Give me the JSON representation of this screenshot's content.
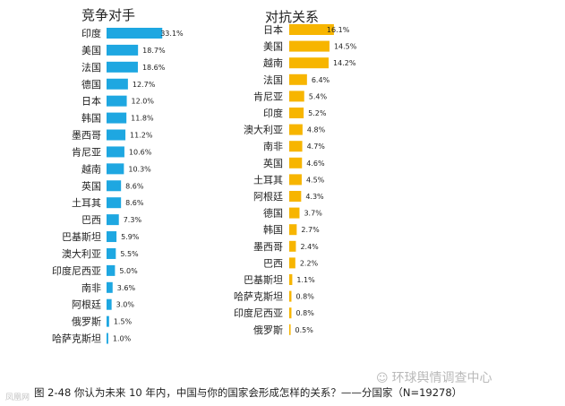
{
  "chart_data": [
    {
      "type": "bar",
      "orientation": "horizontal",
      "title": "竞争对手",
      "unit": "%",
      "color": "#1ea7e1",
      "categories": [
        "印度",
        "美国",
        "法国",
        "德国",
        "日本",
        "韩国",
        "墨西哥",
        "肯尼亚",
        "越南",
        "英国",
        "土耳其",
        "巴西",
        "巴基斯坦",
        "澳大利亚",
        "印度尼西亚",
        "南非",
        "阿根廷",
        "俄罗斯",
        "哈萨克斯坦"
      ],
      "values": [
        33.1,
        18.7,
        18.6,
        12.7,
        12.0,
        11.8,
        11.2,
        10.6,
        10.3,
        8.6,
        8.6,
        7.3,
        5.9,
        5.5,
        5.0,
        3.6,
        3.0,
        1.5,
        1.0
      ],
      "value_labels": [
        "33.1%",
        "18.7%",
        "18.6%",
        "12.7%",
        "12.0%",
        "11.8%",
        "11.2%",
        "10.6%",
        "10.3%",
        "8.6%",
        "8.6%",
        "7.3%",
        "5.9%",
        "5.5%",
        "5.0%",
        "3.6%",
        "3.0%",
        "1.5%",
        "1.0%"
      ]
    },
    {
      "type": "bar",
      "orientation": "horizontal",
      "title": "对抗关系",
      "unit": "%",
      "color": "#f7b500",
      "categories": [
        "日本",
        "美国",
        "越南",
        "法国",
        "肯尼亚",
        "印度",
        "澳大利亚",
        "南非",
        "英国",
        "土耳其",
        "阿根廷",
        "德国",
        "韩国",
        "墨西哥",
        "巴西",
        "巴基斯坦",
        "哈萨克斯坦",
        "印度尼西亚",
        "俄罗斯"
      ],
      "values": [
        16.1,
        14.5,
        14.2,
        6.4,
        5.4,
        5.2,
        4.8,
        4.7,
        4.6,
        4.5,
        4.3,
        3.7,
        2.7,
        2.4,
        2.2,
        1.1,
        0.8,
        0.8,
        0.5
      ],
      "value_labels": [
        "16.1%",
        "14.5%",
        "14.2%",
        "6.4%",
        "5.4%",
        "5.2%",
        "4.8%",
        "4.7%",
        "4.6%",
        "4.5%",
        "4.3%",
        "3.7%",
        "2.7%",
        "2.4%",
        "2.2%",
        "1.1%",
        "0.8%",
        "0.8%",
        "0.5%"
      ]
    }
  ],
  "caption": "图 2-48   你认为未来 10 年内，中国与你的国家会形成怎样的关系？——分国家（N=19278）",
  "watermark": "环球舆情调查中心",
  "watermark_icon": "wechat-icon",
  "corner_mark": "凤凰网"
}
